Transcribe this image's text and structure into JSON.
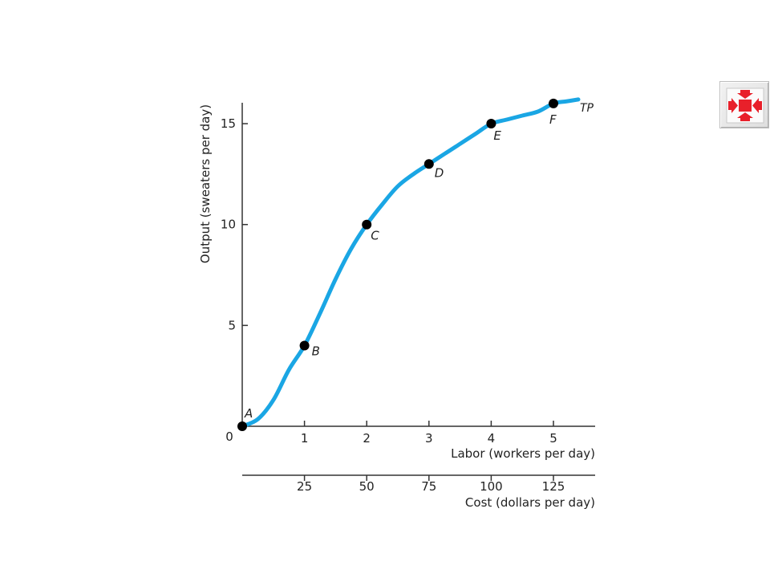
{
  "chart_data": {
    "type": "line",
    "title": "",
    "ylabel": "Output (sweaters per day)",
    "xlabel": "Labor (workers per day)",
    "x2label": "Cost (dollars per day)",
    "series_label": "TP",
    "series_color": "#1aa6e4",
    "point_color": "#000000",
    "xlim": [
      0,
      5.5
    ],
    "ylim": [
      0,
      16
    ],
    "origin_label": "0",
    "x_ticks": [
      {
        "value": 1,
        "label": "1"
      },
      {
        "value": 2,
        "label": "2"
      },
      {
        "value": 3,
        "label": "3"
      },
      {
        "value": 4,
        "label": "4"
      },
      {
        "value": 5,
        "label": "5"
      }
    ],
    "x2_ticks": [
      {
        "value": 1,
        "label": "25"
      },
      {
        "value": 2,
        "label": "50"
      },
      {
        "value": 3,
        "label": "75"
      },
      {
        "value": 4,
        "label": "100"
      },
      {
        "value": 5,
        "label": "125"
      }
    ],
    "y_ticks": [
      {
        "value": 5,
        "label": "5"
      },
      {
        "value": 10,
        "label": "10"
      },
      {
        "value": 15,
        "label": "15"
      }
    ],
    "points": [
      {
        "label": "A",
        "x": 0,
        "y": 0
      },
      {
        "label": "B",
        "x": 1,
        "y": 4
      },
      {
        "label": "C",
        "x": 2,
        "y": 10
      },
      {
        "label": "D",
        "x": 3,
        "y": 13
      },
      {
        "label": "E",
        "x": 4,
        "y": 15
      },
      {
        "label": "F",
        "x": 5,
        "y": 16
      }
    ],
    "curve": [
      [
        0,
        0
      ],
      [
        0.25,
        0.35
      ],
      [
        0.5,
        1.3
      ],
      [
        0.75,
        2.8
      ],
      [
        1,
        4
      ],
      [
        1.25,
        5.6
      ],
      [
        1.5,
        7.3
      ],
      [
        1.75,
        8.8
      ],
      [
        2,
        10
      ],
      [
        2.25,
        11.0
      ],
      [
        2.5,
        11.9
      ],
      [
        2.75,
        12.5
      ],
      [
        3,
        13
      ],
      [
        3.25,
        13.5
      ],
      [
        3.5,
        14.0
      ],
      [
        3.75,
        14.5
      ],
      [
        4,
        15
      ],
      [
        4.25,
        15.2
      ],
      [
        4.5,
        15.4
      ],
      [
        4.75,
        15.6
      ],
      [
        5,
        16
      ],
      [
        5.2,
        16.1
      ],
      [
        5.4,
        16.2
      ]
    ],
    "grid": false
  },
  "nav": {
    "icon": "shrink-arrows-icon",
    "color": "#e8202a"
  }
}
